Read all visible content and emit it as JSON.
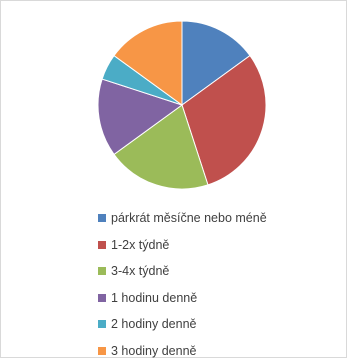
{
  "chart_data": {
    "type": "pie",
    "title": "",
    "legend_position": "bottom",
    "slices": [
      {
        "label": "párkrát měsíčne nebo méně",
        "value": 15,
        "color": "#4f81bd"
      },
      {
        "label": "1-2x týdně",
        "value": 30,
        "color": "#c0504d"
      },
      {
        "label": "3-4x týdně",
        "value": 20,
        "color": "#9bbb59"
      },
      {
        "label": "1 hodinu denně",
        "value": 15,
        "color": "#8064a2"
      },
      {
        "label": "2 hodiny denně",
        "value": 5,
        "color": "#4bacc6"
      },
      {
        "label": "3 hodiny denně",
        "value": 15,
        "color": "#f79646"
      }
    ]
  }
}
